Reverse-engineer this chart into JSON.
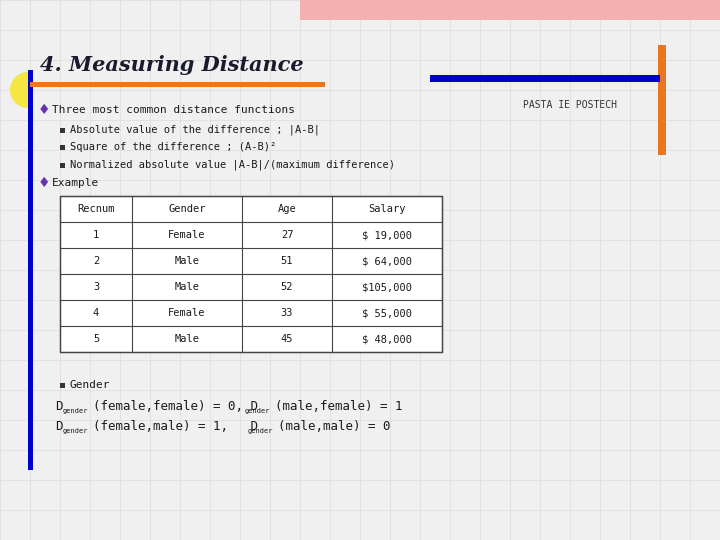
{
  "title": "4. Measuring Distance",
  "bullet1": "Three most common distance functions",
  "sub_bullets": [
    "Absolute value of the difference ; |A-B|",
    "Square of the difference ; (A-B)²",
    "Normalized absolute value |A-B|/(maximum difference)"
  ],
  "bullet2": "Example",
  "table_headers": [
    "Recnum",
    "Gender",
    "Age",
    "Salary"
  ],
  "table_rows": [
    [
      "1",
      "Female",
      "27",
      "$ 19,000"
    ],
    [
      "2",
      "Male",
      "51",
      "$ 64,000"
    ],
    [
      "3",
      "Male",
      "52",
      "$105,000"
    ],
    [
      "4",
      "Female",
      "33",
      "$ 55,000"
    ],
    [
      "5",
      "Male",
      "45",
      "$ 48,000"
    ]
  ],
  "footer_bullet": "Gender",
  "text_color": "#1a1a1a",
  "orange_color": "#e87722",
  "blue_color": "#0000cc",
  "diamond_color": "#6633aa",
  "pink_color": "#f4b0b0",
  "yellow_color": "#f5e642",
  "grid_color": "#d8d8d8",
  "slide_bg": "#f0f0f0"
}
